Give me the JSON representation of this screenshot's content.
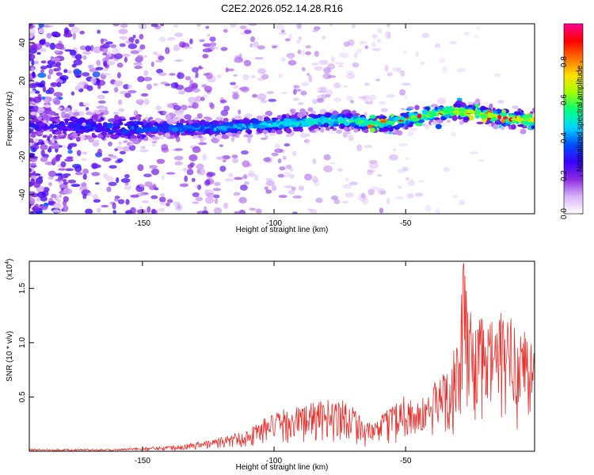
{
  "title": "C2E2.2026.052.14.28.R16",
  "chart_data": [
    {
      "type": "heatmap",
      "title": "C2E2.2026.052.14.28.R16",
      "xlabel": "Height of straight line (km)",
      "ylabel": "Frequency (Hz)",
      "xlim": [
        -193,
        -1
      ],
      "ylim": [
        -50,
        50
      ],
      "xticks": [
        -150,
        -100,
        -50
      ],
      "yticks": [
        -40,
        -20,
        0,
        20,
        40
      ],
      "colorbar": {
        "label": "Normalized spectral amplitude",
        "range": [
          0.0,
          1.0
        ],
        "ticks": [
          "0.0",
          "0.2",
          "0.4",
          "0.6",
          "0.8"
        ],
        "tick_values": [
          0.0,
          0.2,
          0.4,
          0.6,
          0.8
        ],
        "colors": [
          "#ffffff",
          "#d8b4f8",
          "#8a2be2",
          "#3a00ff",
          "#0050ff",
          "#00d8ff",
          "#00ff80",
          "#a0ff00",
          "#ffe000",
          "#ff7000",
          "#ff0000",
          "#ff0090"
        ]
      },
      "ridge": {
        "description_points_x": [
          -193,
          -170,
          -150,
          -130,
          -110,
          -100,
          -90,
          -80,
          -70,
          -62,
          -55,
          -45,
          -38,
          -30,
          -20,
          -10,
          -1
        ],
        "description_points_y": [
          -4,
          -4,
          -5,
          -5,
          -4,
          -3,
          -2,
          -1,
          -1,
          -3,
          -2,
          1,
          3,
          4,
          2,
          0,
          -1
        ]
      }
    },
    {
      "type": "line",
      "xlabel": "Height of straight line (km)",
      "ylabel": "SNR (10 * v/v)",
      "y_multiplier": "(x10",
      "y_multiplier_exp": "4",
      "y_multiplier_close": ")",
      "xlim": [
        -193,
        -1
      ],
      "ylim": [
        0,
        1.75
      ],
      "xticks": [
        -150,
        -100,
        -50
      ],
      "yticks": [
        0.5,
        1.0,
        1.5
      ],
      "ytick_labels": [
        "0.5",
        "1.0",
        "1.5"
      ],
      "series": [
        {
          "name": "SNR",
          "color": "#e8302c",
          "envelope_x": [
            -193,
            -160,
            -140,
            -125,
            -110,
            -105,
            -95,
            -85,
            -75,
            -70,
            -65,
            -60,
            -55,
            -50,
            -45,
            -40,
            -35,
            -30,
            -28,
            -25,
            -20,
            -15,
            -10,
            -5,
            -1
          ],
          "envelope_y": [
            0.02,
            0.02,
            0.05,
            0.1,
            0.2,
            0.3,
            0.4,
            0.45,
            0.5,
            0.45,
            0.25,
            0.3,
            0.45,
            0.55,
            0.45,
            0.6,
            0.8,
            1.0,
            1.75,
            1.3,
            1.2,
            1.3,
            1.25,
            1.2,
            1.0
          ]
        }
      ]
    }
  ]
}
